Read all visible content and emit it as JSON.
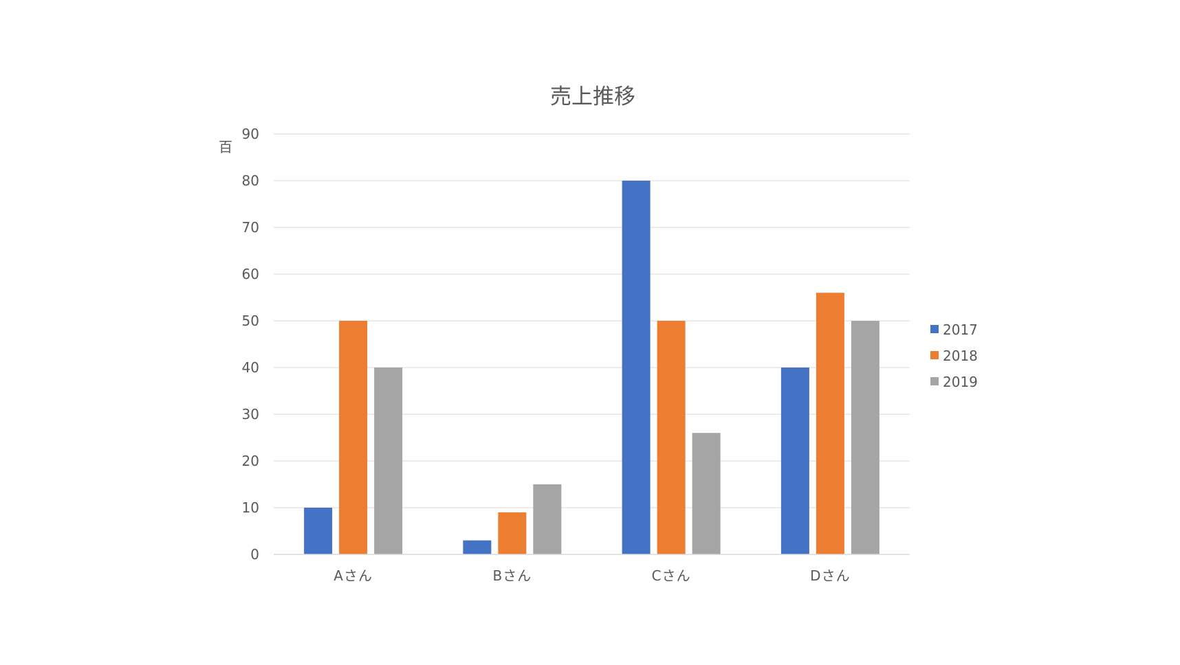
{
  "chart_data": {
    "type": "bar",
    "title": "売上推移",
    "xlabel": "",
    "ylabel": "",
    "y_unit_label": "百",
    "categories": [
      "Aさん",
      "Bさん",
      "Cさん",
      "Dさん"
    ],
    "series": [
      {
        "name": "2017",
        "color": "#4472C4",
        "values": [
          10,
          3,
          80,
          40
        ]
      },
      {
        "name": "2018",
        "color": "#ED7D31",
        "values": [
          50,
          9,
          50,
          56
        ]
      },
      {
        "name": "2019",
        "color": "#A5A5A5",
        "values": [
          40,
          15,
          26,
          50
        ]
      }
    ],
    "ylim": [
      0,
      90
    ],
    "yticks": [
      0,
      10,
      20,
      30,
      40,
      50,
      60,
      70,
      80,
      90
    ],
    "grid": true,
    "legend_position": "right"
  }
}
